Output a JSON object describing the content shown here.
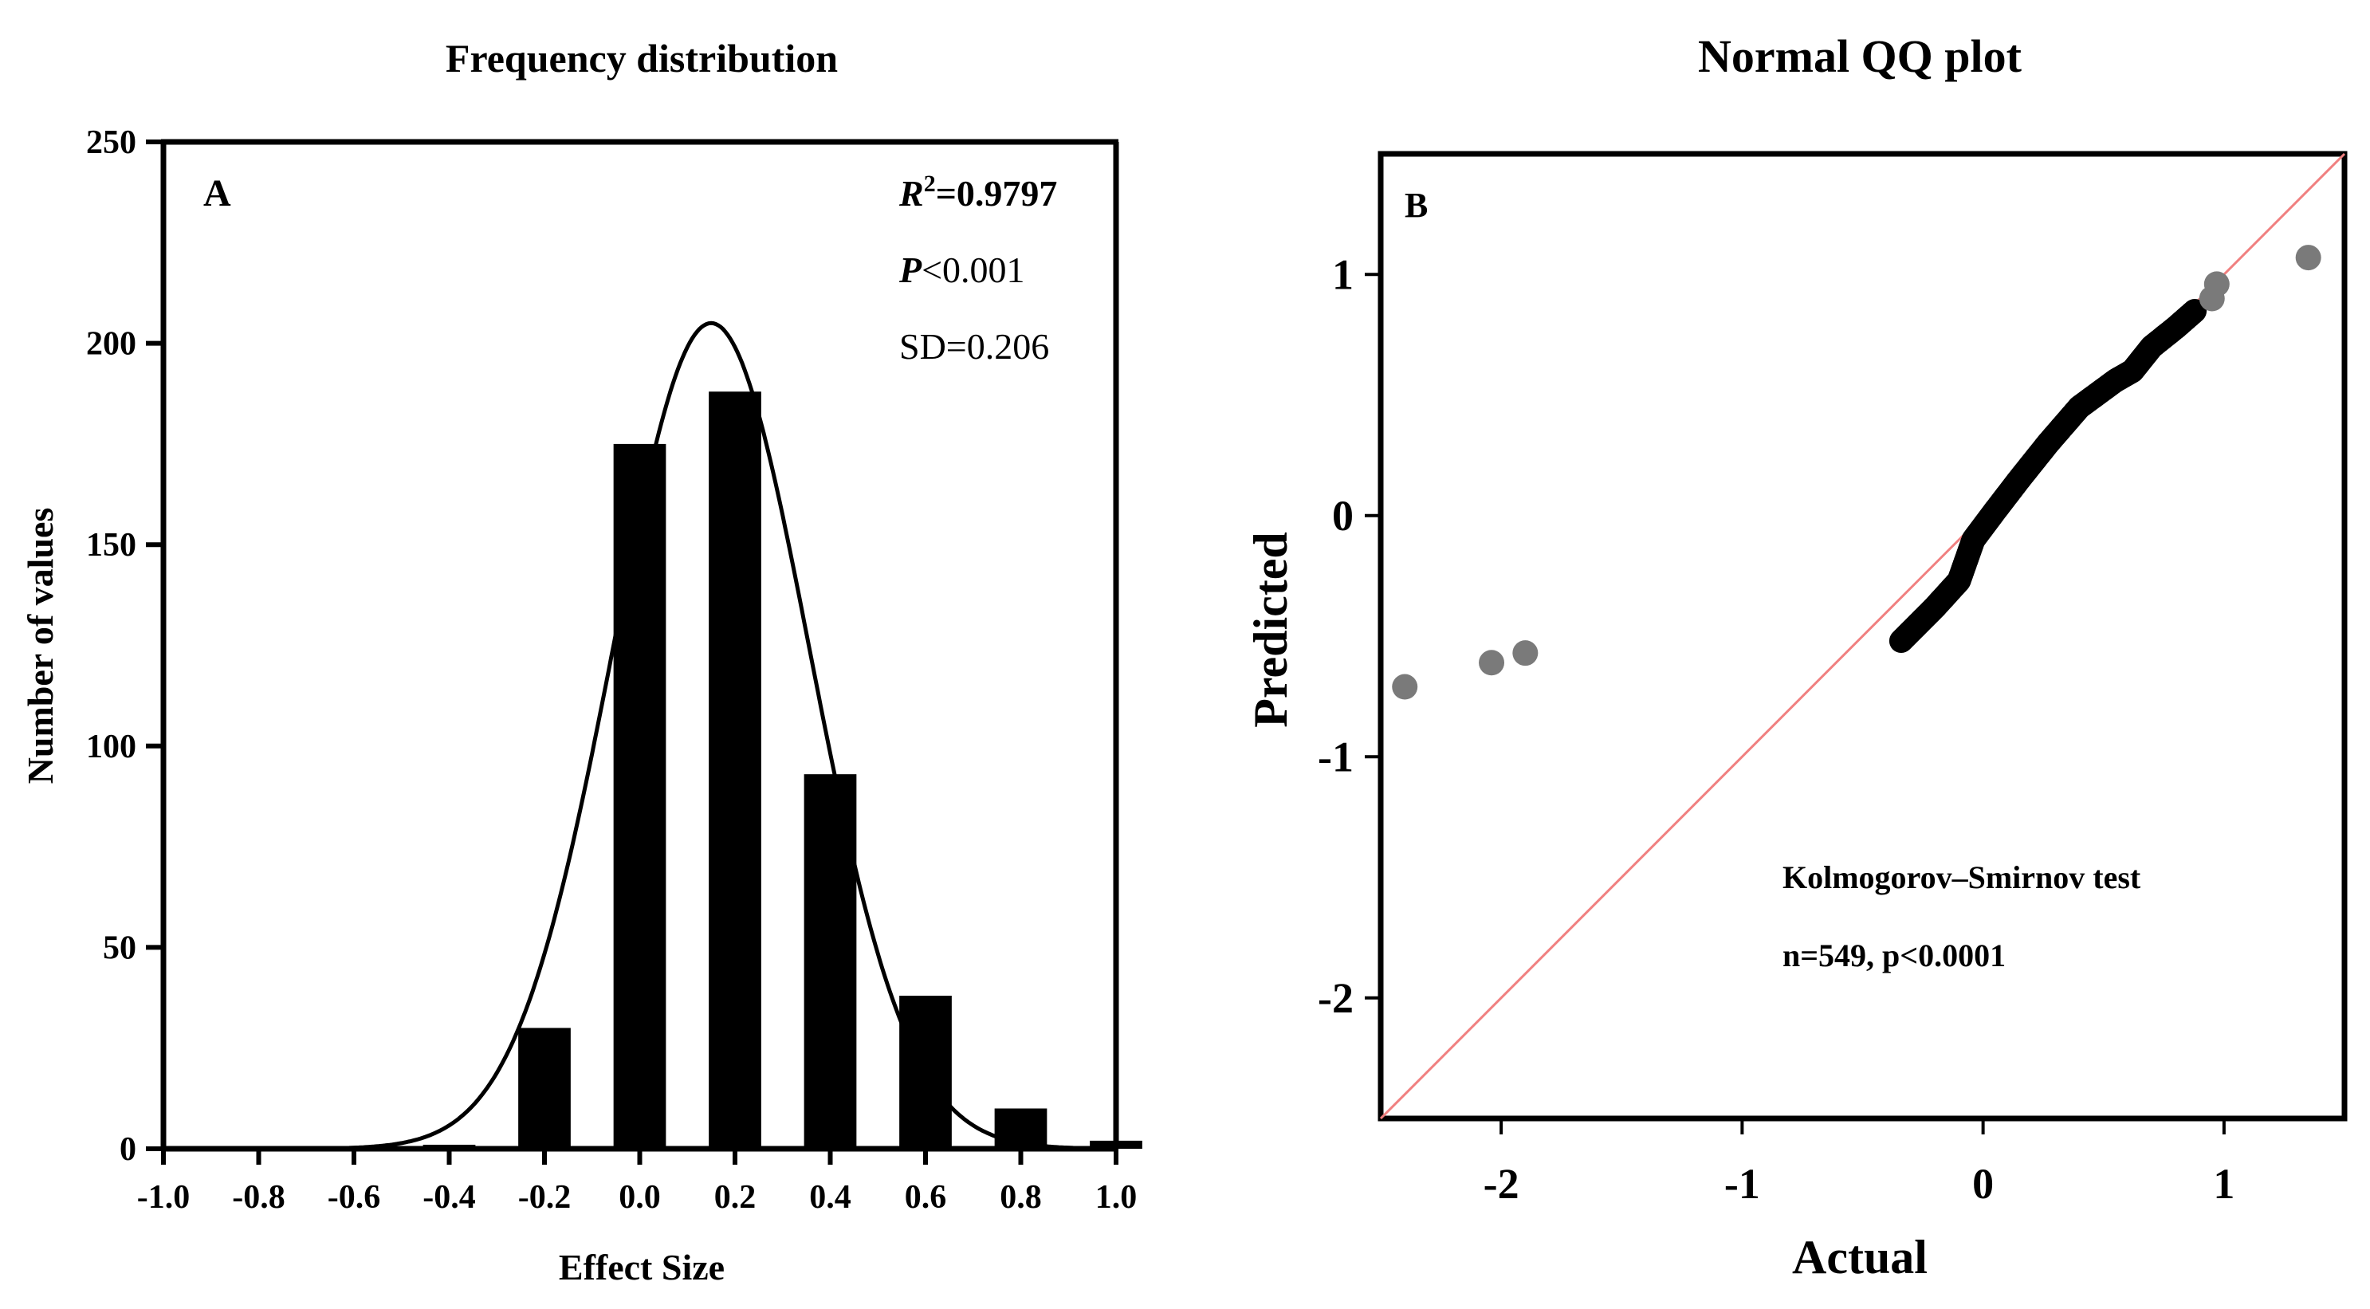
{
  "chart_data": [
    {
      "panel": "A",
      "type": "bar",
      "title": "Frequency distribution",
      "xlabel": "Effect Size",
      "ylabel": "Number of values",
      "xlim": [
        -1.0,
        1.0
      ],
      "ylim": [
        0,
        250
      ],
      "x_ticks": [
        "-1.0",
        "-0.8",
        "-0.6",
        "-0.4",
        "-0.2",
        "0.0",
        "0.2",
        "0.4",
        "0.6",
        "0.8",
        "1.0"
      ],
      "y_ticks": [
        "0",
        "50",
        "100",
        "150",
        "200",
        "250"
      ],
      "bins": [
        -0.4,
        -0.2,
        0.0,
        0.2,
        0.4,
        0.6,
        0.8,
        1.0
      ],
      "values": [
        1,
        30,
        175,
        188,
        93,
        38,
        10,
        2
      ],
      "fit_curve": {
        "type": "gaussian",
        "mean": 0.15,
        "sd": 0.206,
        "peak": 205
      },
      "annotations": {
        "r2_label": "R",
        "r2_sup": "2",
        "r2_value": "=0.9797",
        "p_label": "P",
        "p_value": "<0.001",
        "sd": "SD=0.206"
      },
      "grid": false
    },
    {
      "panel": "B",
      "type": "scatter",
      "title": "Normal QQ plot",
      "xlabel": "Actual",
      "ylabel": "Predicted",
      "x_ticks": [
        "-2",
        "-1",
        "0",
        "1"
      ],
      "y_ticks": [
        "-2",
        "-1",
        "0",
        "1"
      ],
      "outliers": [
        {
          "x": -2.4,
          "y": -0.71
        },
        {
          "x": -2.04,
          "y": -0.61
        },
        {
          "x": -1.9,
          "y": -0.57
        },
        {
          "x": 0.95,
          "y": 0.9
        },
        {
          "x": 0.97,
          "y": 0.96
        },
        {
          "x": 1.35,
          "y": 1.07
        }
      ],
      "main_trend": [
        [
          -0.34,
          -0.52
        ],
        [
          -0.2,
          -0.38
        ],
        [
          -0.1,
          -0.27
        ],
        [
          -0.04,
          -0.1
        ],
        [
          0.05,
          0.02
        ],
        [
          0.15,
          0.15
        ],
        [
          0.27,
          0.3
        ],
        [
          0.4,
          0.45
        ],
        [
          0.55,
          0.56
        ],
        [
          0.62,
          0.6
        ],
        [
          0.7,
          0.7
        ],
        [
          0.8,
          0.78
        ],
        [
          0.88,
          0.85
        ]
      ],
      "reference_line": {
        "color": "#f08080"
      },
      "annotations": {
        "test": "Kolmogorov–Smirnov test",
        "stats": "n=549, p<0.0001"
      },
      "point_color": "#7a7a7a",
      "grid": false
    }
  ]
}
